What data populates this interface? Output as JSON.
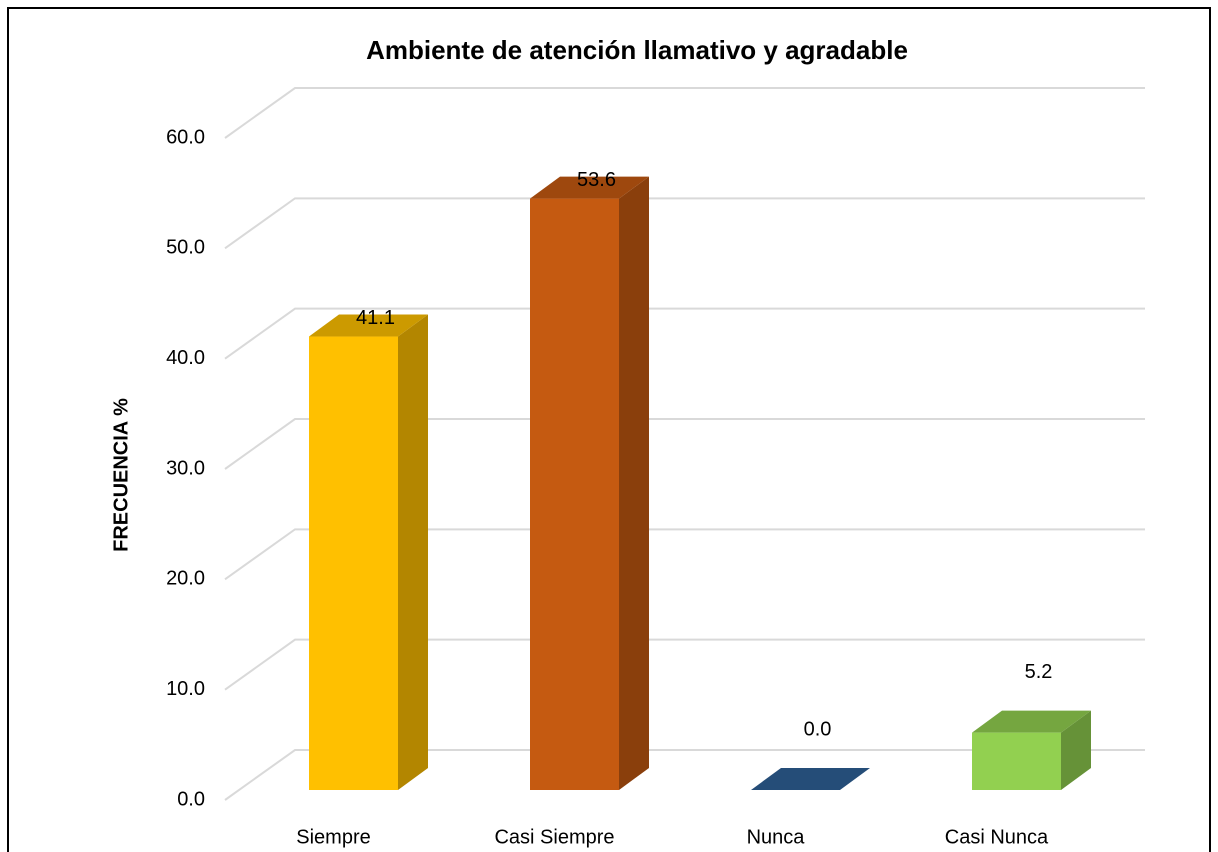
{
  "chart_data": {
    "type": "bar3d",
    "title": "Ambiente de atención llamativo y agradable",
    "y_label": "FRECUENCIA %",
    "categories": [
      "Siempre",
      "Casi Siempre",
      "Nunca",
      "Casi Nunca"
    ],
    "values": [
      41.1,
      53.6,
      0.0,
      5.2
    ],
    "value_labels": [
      "41.1",
      "53.6",
      "0.0",
      "5.2"
    ],
    "colors": [
      "#ffc000",
      "#c55a11",
      "#2e6096",
      "#92d050"
    ],
    "ylim": [
      0,
      60
    ],
    "yticks": [
      {
        "value": 0,
        "label": "0.0"
      },
      {
        "value": 10,
        "label": "10.0"
      },
      {
        "value": 20,
        "label": "20.0"
      },
      {
        "value": 30,
        "label": "30.0"
      },
      {
        "value": 40,
        "label": "40.0"
      },
      {
        "value": 50,
        "label": "50.0"
      },
      {
        "value": 60,
        "label": "60.0"
      }
    ],
    "grid": true
  }
}
